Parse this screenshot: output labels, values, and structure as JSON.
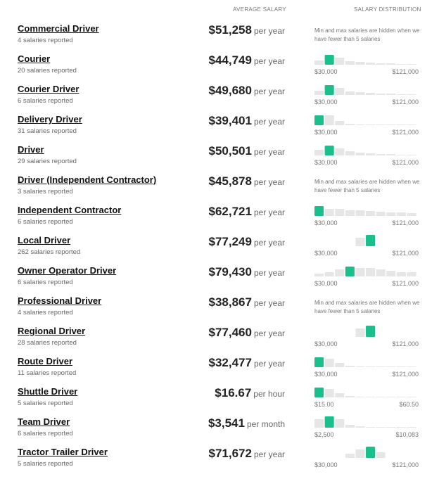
{
  "header": {
    "average": "AVERAGE SALARY",
    "distribution": "SALARY DISTRIBUTION"
  },
  "rows": [
    {
      "title": "Commercial Driver",
      "count": "4 salaries reported",
      "amount": "$51,258",
      "unit": "per year",
      "note": "Min and max salaries are hidden when we have fewer than 5 salaries"
    },
    {
      "title": "Courier",
      "count": "20 salaries reported",
      "amount": "$44,749",
      "unit": "per year",
      "min": "$30,000",
      "max": "$121,000",
      "bars": [
        6,
        14,
        10,
        5,
        4,
        3,
        2,
        2,
        1,
        1
      ],
      "highlight": 1
    },
    {
      "title": "Courier Driver",
      "count": "6 salaries reported",
      "amount": "$49,680",
      "unit": "per year",
      "min": "$30,000",
      "max": "$121,000",
      "bars": [
        6,
        14,
        10,
        5,
        4,
        3,
        2,
        2,
        1,
        1
      ],
      "highlight": 1
    },
    {
      "title": "Delivery Driver",
      "count": "31 salaries reported",
      "amount": "$39,401",
      "unit": "per year",
      "min": "$30,000",
      "max": "$121,000",
      "bars": [
        14,
        14,
        6,
        2,
        1,
        1,
        1,
        1,
        1,
        1
      ],
      "highlight": 0
    },
    {
      "title": "Driver",
      "count": "29 salaries reported",
      "amount": "$50,501",
      "unit": "per year",
      "min": "$30,000",
      "max": "$121,000",
      "bars": [
        8,
        14,
        10,
        6,
        4,
        3,
        2,
        2,
        1,
        1
      ],
      "highlight": 1
    },
    {
      "title": "Driver (Independent Contractor)",
      "count": "3 salaries reported",
      "amount": "$45,878",
      "unit": "per year",
      "note": "Min and max salaries are hidden when we have fewer than 5 salaries"
    },
    {
      "title": "Independent Contractor",
      "count": "6 salaries reported",
      "amount": "$62,721",
      "unit": "per year",
      "min": "$30,000",
      "max": "$121,000",
      "bars": [
        14,
        10,
        10,
        8,
        8,
        7,
        6,
        5,
        5,
        4
      ],
      "highlight": 0
    },
    {
      "title": "Local Driver",
      "count": "262 salaries reported",
      "amount": "$77,249",
      "unit": "per year",
      "min": "$30,000",
      "max": "$121,000",
      "bars": [
        0,
        0,
        0,
        0,
        12,
        16,
        0,
        0,
        0,
        0
      ],
      "highlight": 5
    },
    {
      "title": "Owner Operator Driver",
      "count": "6 salaries reported",
      "amount": "$79,430",
      "unit": "per year",
      "min": "$30,000",
      "max": "$121,000",
      "bars": [
        4,
        6,
        10,
        14,
        12,
        12,
        10,
        8,
        6,
        6
      ],
      "highlight": 3
    },
    {
      "title": "Professional Driver",
      "count": "4 salaries reported",
      "amount": "$38,867",
      "unit": "per year",
      "note": "Min and max salaries are hidden when we have fewer than 5 salaries"
    },
    {
      "title": "Regional Driver",
      "count": "28 salaries reported",
      "amount": "$77,460",
      "unit": "per year",
      "min": "$30,000",
      "max": "$121,000",
      "bars": [
        0,
        0,
        0,
        0,
        12,
        16,
        0,
        0,
        0,
        0
      ],
      "highlight": 5
    },
    {
      "title": "Route Driver",
      "count": "11 salaries reported",
      "amount": "$32,477",
      "unit": "per year",
      "min": "$30,000",
      "max": "$121,000",
      "bars": [
        14,
        12,
        6,
        2,
        1,
        1,
        1,
        1,
        1,
        1
      ],
      "highlight": 0
    },
    {
      "title": "Shuttle Driver",
      "count": "5 salaries reported",
      "amount": "$16.67",
      "unit": "per hour",
      "min": "$15.00",
      "max": "$60.50",
      "bars": [
        14,
        12,
        6,
        2,
        1,
        1,
        1,
        1,
        1,
        1
      ],
      "highlight": 0
    },
    {
      "title": "Team Driver",
      "count": "6 salaries reported",
      "amount": "$3,541",
      "unit": "per month",
      "min": "$2,500",
      "max": "$10,083",
      "bars": [
        12,
        16,
        12,
        4,
        2,
        1,
        1,
        1,
        1,
        1
      ],
      "highlight": 1
    },
    {
      "title": "Tractor Trailer Driver",
      "count": "5 salaries reported",
      "amount": "$71,672",
      "unit": "per year",
      "min": "$30,000",
      "max": "$121,000",
      "bars": [
        0,
        0,
        0,
        6,
        12,
        16,
        8,
        0,
        0,
        0
      ],
      "highlight": 5
    }
  ]
}
